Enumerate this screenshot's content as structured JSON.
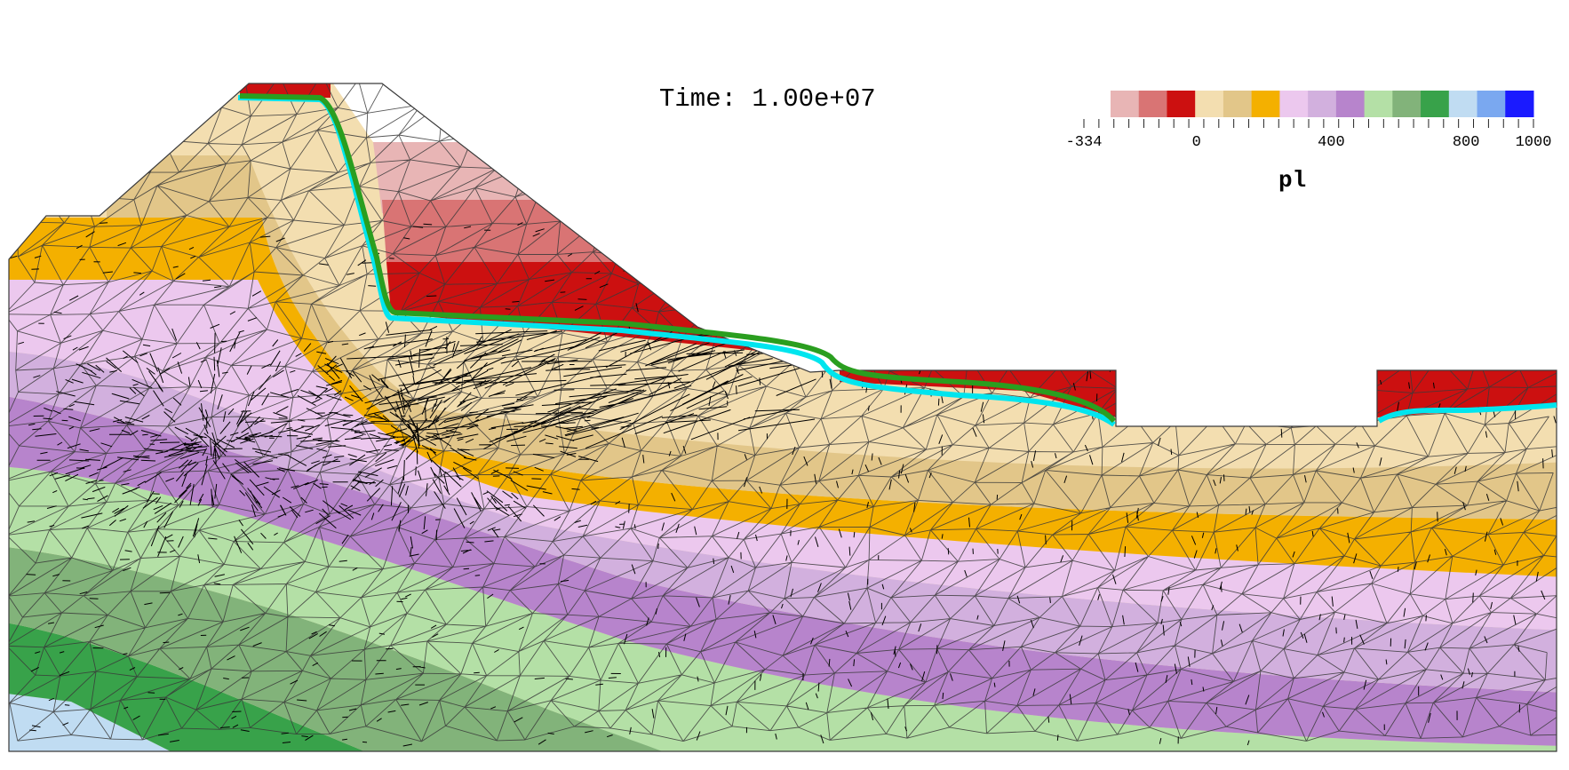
{
  "time": {
    "label": "Time:",
    "value": "1.00e+07",
    "text": "Time: 1.00e+07"
  },
  "legend": {
    "title": "pl",
    "min": -334,
    "max": 1000,
    "tick_labels": [
      "-334",
      "0",
      "400",
      "800",
      "1000"
    ],
    "tick_values": [
      -334,
      0,
      400,
      800,
      1000
    ],
    "colors": [
      "#e8b5b5",
      "#d97474",
      "#cc1010",
      "#f3deb0",
      "#e2c689",
      "#f4b000",
      "#ecc8ee",
      "#d2b0de",
      "#b784cc",
      "#b4e0a6",
      "#82b37a",
      "#38a24a",
      "#c0dcf2",
      "#7aa8f0",
      "#1a1aff"
    ],
    "bin_edges": [
      -334,
      -245,
      -156,
      -67,
      22,
      111,
      200,
      289,
      378,
      467,
      556,
      645,
      734,
      822,
      911,
      1000
    ]
  },
  "chart_data": {
    "type": "heatmap",
    "title": "Time: 1.00e+07",
    "colorbar_label": "pl",
    "colorbar_range": [
      -334,
      1000
    ],
    "colorbar_ticks": [
      -334,
      0,
      400,
      800,
      1000
    ],
    "levels": 15,
    "overlays": {
      "mesh": "triangular finite element mesh",
      "vectors": "flow arrows",
      "lines": [
        {
          "color": "#00e5ee"
        },
        {
          "color": "#2a9e1f"
        }
      ]
    }
  }
}
